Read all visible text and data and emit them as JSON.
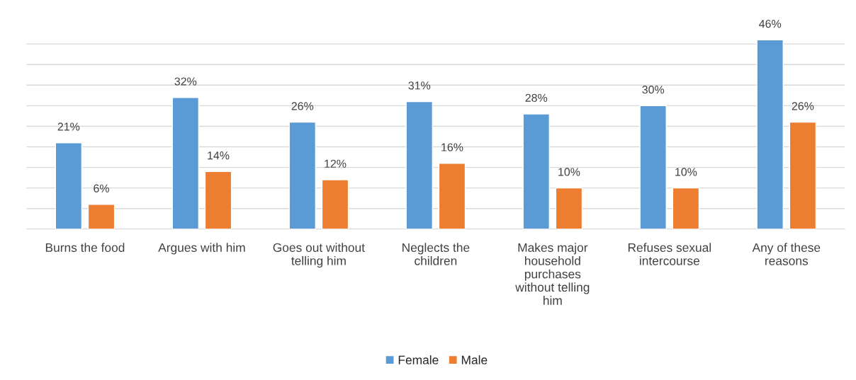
{
  "chart_data": {
    "type": "bar",
    "categories": [
      "Burns the food",
      "Argues with him",
      "Goes out without telling him",
      "Neglects the children",
      "Makes major household purchases without telling him",
      "Refuses sexual intercourse",
      "Any of these reasons"
    ],
    "series": [
      {
        "name": "Female",
        "color": "#5b9bd5",
        "values": [
          21,
          32,
          26,
          31,
          28,
          30,
          46
        ],
        "value_labels": [
          "21%",
          "32%",
          "26%",
          "31%",
          "28%",
          "30%",
          "46%"
        ]
      },
      {
        "name": "Male",
        "color": "#ed7d31",
        "values": [
          6,
          14,
          12,
          16,
          10,
          10,
          26
        ],
        "value_labels": [
          "6%",
          "14%",
          "12%",
          "16%",
          "10%",
          "10%",
          "26%"
        ]
      }
    ],
    "tick_labels": "x",
    "grid": "y",
    "legend": "bottom"
  }
}
